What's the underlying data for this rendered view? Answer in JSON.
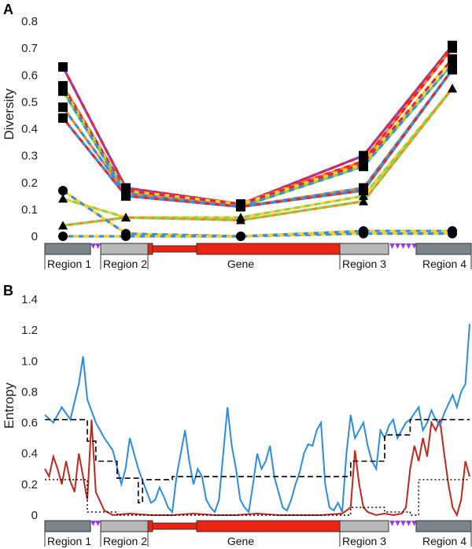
{
  "chart_data": [
    {
      "panel": "A",
      "type": "line",
      "ylabel": "Diversity",
      "ylim": [
        0,
        0.8
      ],
      "yticks": [
        "0",
        "0.1",
        "0.2",
        "0.3",
        "0.4",
        "0.5",
        "0.6",
        "0.7",
        "0.8"
      ],
      "x_positions": [
        "Region 1",
        "Region 2",
        "Gene",
        "Region 3",
        "Region 4"
      ],
      "series": [
        {
          "marker": "square",
          "colors": [
            "#e8262a",
            "#8a3fd1"
          ],
          "values": [
            0.63,
            0.18,
            0.12,
            0.3,
            0.71
          ]
        },
        {
          "marker": "square",
          "colors": [
            "#e8262a",
            "#f08a24"
          ],
          "values": [
            0.56,
            0.17,
            0.12,
            0.28,
            0.7
          ]
        },
        {
          "marker": "square",
          "colors": [
            "#e8262a",
            "#f6d22a"
          ],
          "values": [
            0.55,
            0.17,
            0.12,
            0.27,
            0.66
          ]
        },
        {
          "marker": "square",
          "colors": [
            "#3a8fdc",
            "#8fd14a"
          ],
          "values": [
            0.54,
            0.16,
            0.11,
            0.26,
            0.64
          ]
        },
        {
          "marker": "square",
          "colors": [
            "#3a8fdc",
            "#f08a24"
          ],
          "values": [
            0.48,
            0.16,
            0.11,
            0.18,
            0.62
          ]
        },
        {
          "marker": "square",
          "colors": [
            "#3a8fdc",
            "#e8262a"
          ],
          "values": [
            0.44,
            0.15,
            0.11,
            0.17,
            0.62
          ]
        },
        {
          "marker": "triangle",
          "colors": [
            "#8fd14a",
            "#f6d22a"
          ],
          "values": [
            0.14,
            0.07,
            0.07,
            0.15,
            0.55
          ]
        },
        {
          "marker": "triangle",
          "colors": [
            "#8fd14a",
            "#f08a24"
          ],
          "values": [
            0.04,
            0.07,
            0.06,
            0.13,
            0.55
          ]
        },
        {
          "marker": "circle",
          "colors": [
            "#3a8fdc",
            "#f6d22a"
          ],
          "values": [
            0.17,
            0.01,
            0.0,
            0.01,
            0.01
          ]
        },
        {
          "marker": "circle",
          "colors": [
            "#f6d22a",
            "#3a8fdc"
          ],
          "values": [
            0.0,
            0.0,
            0.0,
            0.02,
            0.02
          ]
        }
      ]
    },
    {
      "panel": "B",
      "type": "line",
      "ylabel": "Entropy",
      "ylim": [
        0,
        1.4
      ],
      "yticks": [
        "0",
        "0.2",
        "0.4",
        "0.6",
        "0.8",
        "1.0",
        "1.2",
        "1.4"
      ],
      "x_range": [
        0,
        100
      ],
      "blue_line": {
        "color": "#2b8ce0",
        "x": [
          0,
          2,
          4,
          6,
          8,
          9,
          10,
          12,
          14,
          16,
          18,
          19,
          20,
          22,
          24,
          25,
          26,
          27,
          28,
          29,
          30,
          31,
          32,
          33,
          34,
          35,
          36,
          37,
          38,
          39,
          40,
          41,
          42,
          43,
          44,
          45,
          46,
          47,
          48,
          49,
          50,
          51,
          52,
          53,
          54,
          55,
          56,
          57,
          58,
          59,
          60,
          61,
          62,
          63,
          64,
          65,
          66,
          67,
          68,
          69,
          70,
          71,
          72,
          73,
          74,
          75,
          76,
          77,
          78,
          79,
          80,
          81,
          82,
          83,
          84,
          85,
          86,
          87,
          88,
          89,
          90,
          91,
          92,
          93,
          94,
          95,
          96,
          97,
          98,
          99,
          100
        ],
        "y": [
          0.65,
          0.6,
          0.7,
          0.62,
          0.85,
          1.03,
          0.75,
          0.6,
          0.5,
          0.42,
          0.2,
          0.3,
          0.5,
          0.3,
          0.15,
          0.08,
          0.1,
          0.18,
          0.12,
          0.05,
          0.02,
          0.25,
          0.4,
          0.55,
          0.35,
          0.2,
          0.3,
          0.25,
          0.1,
          0.05,
          0.02,
          0.1,
          0.4,
          0.7,
          0.45,
          0.3,
          0.1,
          0.05,
          0.02,
          0.2,
          0.4,
          0.3,
          0.35,
          0.45,
          0.25,
          0.15,
          0.05,
          0.03,
          0.1,
          0.2,
          0.28,
          0.4,
          0.46,
          0.45,
          0.55,
          0.6,
          0.2,
          0.05,
          0.03,
          0.08,
          0.02,
          0.4,
          0.65,
          0.5,
          0.55,
          0.6,
          0.45,
          0.35,
          0.3,
          0.55,
          0.5,
          0.58,
          0.62,
          0.5,
          0.55,
          0.6,
          0.62,
          0.66,
          0.7,
          0.55,
          0.6,
          0.68,
          0.62,
          0.58,
          0.66,
          0.72,
          0.78,
          0.7,
          0.8,
          0.85,
          1.24
        ]
      },
      "red_line": {
        "color": "#c0281e",
        "x": [
          0,
          1,
          2,
          3,
          4,
          5,
          6,
          7,
          8,
          9,
          10,
          11,
          12,
          14,
          16,
          20,
          25,
          30,
          35,
          40,
          45,
          50,
          55,
          60,
          65,
          70,
          72,
          73,
          74,
          75,
          76,
          78,
          80,
          82,
          84,
          85,
          86,
          87,
          88,
          89,
          90,
          91,
          92,
          93,
          94,
          95,
          96,
          97,
          98,
          99,
          100
        ],
        "y": [
          0.3,
          0.25,
          0.38,
          0.3,
          0.2,
          0.35,
          0.22,
          0.15,
          0.4,
          0.25,
          0.1,
          0.62,
          0.15,
          0.03,
          0.0,
          0.01,
          0.0,
          0.0,
          0.01,
          0.0,
          0.0,
          0.01,
          0.0,
          0.0,
          0.0,
          0.01,
          0.05,
          0.42,
          0.2,
          0.05,
          0.02,
          0.0,
          0.01,
          0.0,
          0.01,
          0.05,
          0.3,
          0.45,
          0.35,
          0.5,
          0.38,
          0.6,
          0.55,
          0.62,
          0.4,
          0.2,
          0.05,
          0.0,
          0.1,
          0.35,
          0.25
        ]
      },
      "dashed_step": {
        "color": "#000000",
        "x": [
          0,
          10,
          10,
          12,
          12,
          17,
          17,
          22,
          22,
          23,
          23,
          30,
          30,
          72,
          72,
          80,
          80,
          86,
          86,
          100
        ],
        "y": [
          0.62,
          0.62,
          0.48,
          0.48,
          0.35,
          0.35,
          0.24,
          0.24,
          0.08,
          0.08,
          0.23,
          0.23,
          0.25,
          0.25,
          0.35,
          0.35,
          0.52,
          0.52,
          0.62,
          0.62
        ]
      },
      "dotted_step": {
        "color": "#000000",
        "x": [
          0,
          10,
          10,
          17,
          17,
          50,
          72,
          72,
          80,
          80,
          86,
          86,
          88,
          88,
          100
        ],
        "y": [
          0.23,
          0.23,
          0.02,
          0.02,
          0.0,
          0.0,
          0.0,
          0.05,
          0.05,
          0.02,
          0.02,
          0.0,
          0.0,
          0.23,
          0.23
        ]
      }
    }
  ],
  "panels": {
    "a_letter": "A",
    "b_letter": "B"
  },
  "gene_map": {
    "region1": "Region 1",
    "region2": "Region 2",
    "gene": "Gene",
    "region3": "Region 3",
    "region4": "Region 4",
    "colors": {
      "region_dark": "#7a858b",
      "region_light": "#b8b8b8",
      "gene": "#ee2211",
      "marker": "#9a3fe0"
    }
  }
}
